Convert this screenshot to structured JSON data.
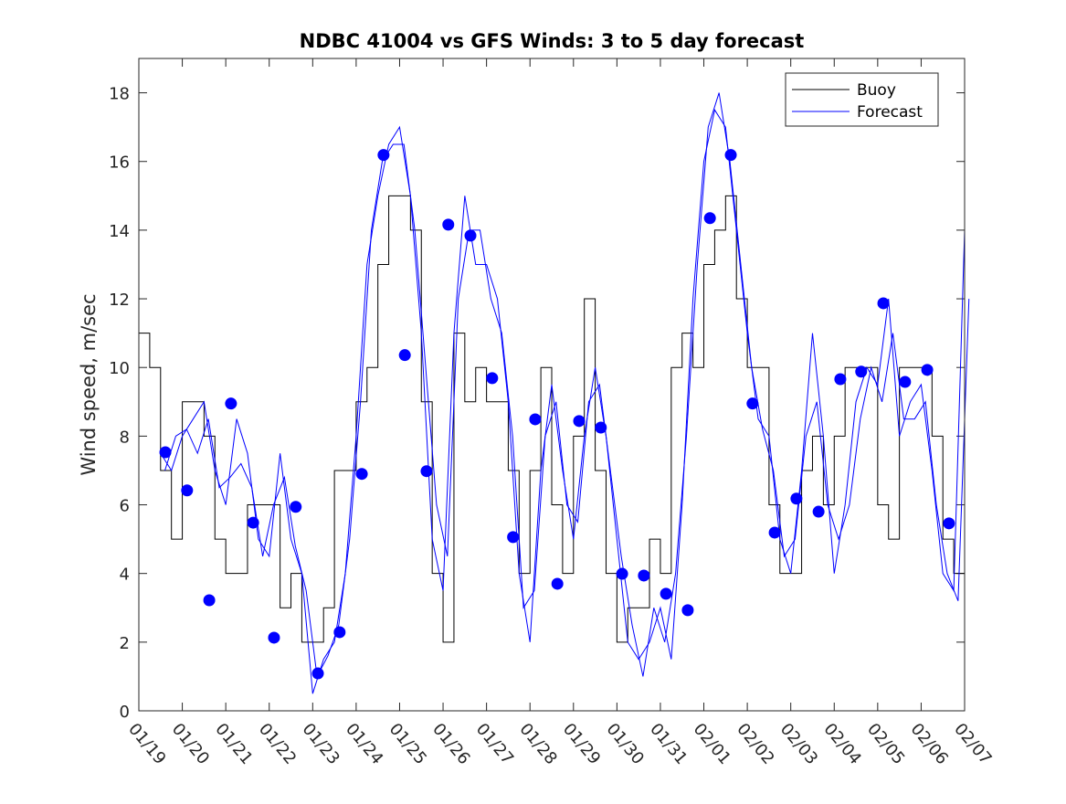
{
  "chart_data": {
    "type": "line",
    "title": "NDBC 41004 vs GFS Winds: 3 to 5 day forecast",
    "xlabel": "",
    "ylabel": "Wind speed, m/sec",
    "x_units": "days since 01/19",
    "xlim": [
      0,
      19
    ],
    "ylim": [
      0,
      19
    ],
    "x_tick_labels": [
      "01/19",
      "01/20",
      "01/21",
      "01/22",
      "01/23",
      "01/24",
      "01/25",
      "01/26",
      "01/27",
      "01/28",
      "01/29",
      "01/30",
      "01/31",
      "02/01",
      "02/02",
      "02/03",
      "02/04",
      "02/05",
      "02/06",
      "02/07"
    ],
    "y_ticks": [
      0,
      2,
      4,
      6,
      8,
      10,
      12,
      14,
      16,
      18
    ],
    "legend": {
      "placement": "top-right",
      "entries": [
        "Buoy",
        "Forecast"
      ]
    },
    "colors": {
      "buoy": "#000000",
      "forecast": "#0000ff"
    },
    "series": [
      {
        "name": "Buoy",
        "style": "step",
        "x_start": 0,
        "x_step": 0.25,
        "values": [
          11,
          10,
          7,
          5,
          9,
          9,
          8,
          5,
          4,
          4,
          6,
          6,
          6,
          3,
          4,
          2,
          2,
          3,
          7,
          7,
          9,
          10,
          13,
          15,
          15,
          14,
          9,
          4,
          2,
          11,
          9,
          10,
          9,
          9,
          7,
          4,
          7,
          10,
          6,
          4,
          8,
          12,
          7,
          4,
          2,
          3,
          3,
          5,
          4,
          10,
          11,
          10,
          13,
          14,
          15,
          12,
          10,
          10,
          6,
          4,
          4,
          7,
          8,
          6,
          8,
          10,
          10,
          10,
          6,
          5,
          10,
          10,
          10,
          8,
          5,
          4,
          13
        ]
      },
      {
        "name": "Forecast",
        "style": "line",
        "x_start": 0.5,
        "x_step": 0.25,
        "values": [
          7.5,
          7,
          8,
          8.5,
          9,
          7,
          6,
          8.5,
          7.5,
          5,
          4.5,
          7.5,
          5,
          4,
          0.5,
          1.5,
          2,
          4,
          8,
          13,
          15,
          16.5,
          17,
          15,
          11,
          5,
          3.5,
          11,
          15,
          13,
          13,
          12,
          9,
          4,
          2,
          7,
          9.5,
          7,
          5,
          8,
          10,
          8,
          5,
          2,
          1.5,
          2,
          3,
          1.5,
          6,
          12,
          16,
          17.5,
          17,
          14,
          11,
          8.5,
          8,
          5,
          4,
          7,
          11,
          8,
          4,
          6,
          9,
          10,
          9.5,
          12,
          8,
          9,
          9.5,
          7,
          4,
          3.5,
          14
        ]
      },
      {
        "name": "Forecast",
        "style": "line",
        "x_start": 0.6,
        "x_step": 0.25,
        "values": [
          7,
          8,
          8.2,
          7.5,
          8.5,
          6.5,
          6.8,
          7.2,
          6.5,
          4.5,
          6,
          6.8,
          4.8,
          3.5,
          1,
          1.6,
          2.5,
          5,
          9,
          14,
          16,
          16.5,
          16.5,
          14,
          10,
          6,
          4.5,
          12,
          14,
          14,
          12,
          11,
          8,
          3,
          3.5,
          8,
          9,
          6,
          5.5,
          9,
          9.5,
          7,
          4.5,
          2.5,
          1,
          3,
          2,
          4,
          8,
          13,
          17,
          18,
          16,
          13,
          10,
          8.2,
          7,
          4.5,
          5,
          8,
          9,
          6,
          5,
          6,
          8.5,
          10,
          9,
          11,
          8.5,
          8.5,
          9,
          6,
          4,
          3.2,
          12
        ]
      }
    ],
    "markers": {
      "name": "Forecast",
      "shape": "filled-circle",
      "x": [
        0.61,
        1.11,
        1.62,
        2.12,
        2.63,
        3.11,
        3.61,
        4.12,
        4.62,
        5.13,
        5.63,
        6.12,
        6.62,
        7.12,
        7.63,
        8.13,
        8.61,
        9.12,
        9.63,
        10.13,
        10.63,
        11.12,
        11.62,
        12.13,
        12.63,
        13.14,
        13.62,
        14.12,
        14.63,
        15.13,
        15.64,
        16.14,
        16.62,
        17.13,
        17.63,
        18.14,
        18.64
      ],
      "y": [
        7.53,
        6.42,
        3.22,
        8.95,
        5.48,
        2.13,
        5.94,
        1.09,
        2.29,
        6.9,
        16.19,
        10.36,
        6.98,
        14.16,
        13.84,
        9.69,
        5.06,
        8.49,
        3.7,
        8.44,
        8.25,
        3.99,
        3.94,
        3.41,
        2.93,
        14.35,
        16.19,
        8.95,
        5.19,
        6.18,
        5.8,
        9.66,
        9.88,
        11.87,
        9.58,
        9.93,
        5.46
      ]
    }
  }
}
